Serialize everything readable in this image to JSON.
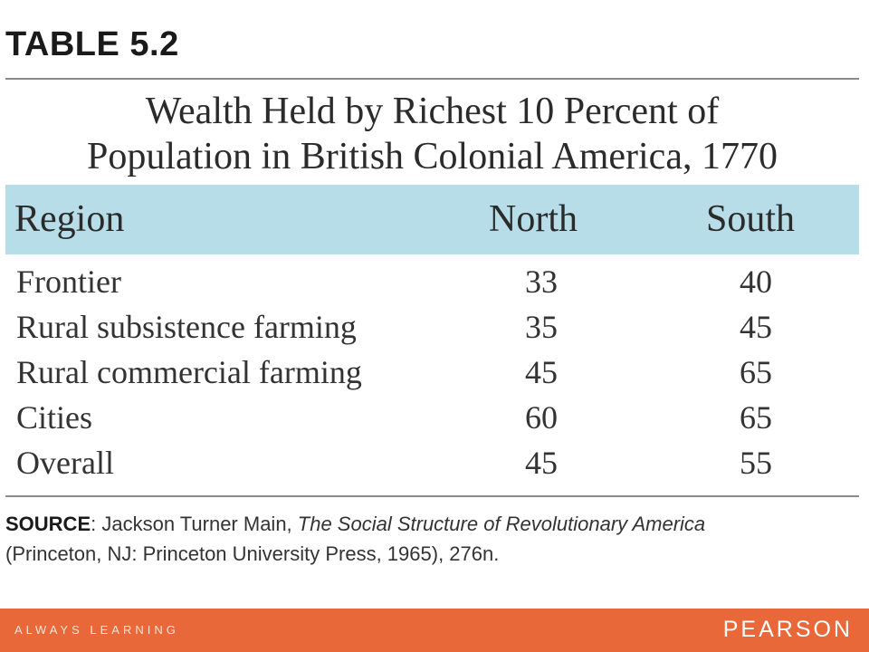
{
  "table_label": "TABLE 5.2",
  "title_line1": "Wealth Held by Richest 10 Percent of",
  "title_line2": "Population in British Colonial America, 1770",
  "columns": [
    "Region",
    "North",
    "South"
  ],
  "rows": [
    {
      "region": "Frontier",
      "north": "33",
      "south": "40"
    },
    {
      "region": "Rural subsistence farming",
      "north": "35",
      "south": "45"
    },
    {
      "region": "Rural commercial farming",
      "north": "45",
      "south": "65"
    },
    {
      "region": "Cities",
      "north": "60",
      "south": "65"
    },
    {
      "region": "Overall",
      "north": "45",
      "south": "55"
    }
  ],
  "source": {
    "label": "SOURCE",
    "separator": ": Jackson Turner Main, ",
    "book_title": "The Social Structure of Revolutionary America",
    "publication": "(Princeton, NJ: Princeton University Press, 1965), 276n."
  },
  "footer": {
    "tagline": "ALWAYS LEARNING",
    "brand": "PEARSON"
  },
  "colors": {
    "header_band": "#b7dde8",
    "footer_bar": "#e8683a"
  }
}
